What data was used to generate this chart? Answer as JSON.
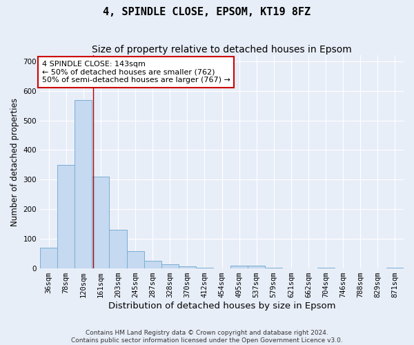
{
  "title": "4, SPINDLE CLOSE, EPSOM, KT19 8FZ",
  "subtitle": "Size of property relative to detached houses in Epsom",
  "xlabel": "Distribution of detached houses by size in Epsom",
  "ylabel": "Number of detached properties",
  "bar_color": "#c5d9f0",
  "bar_edge_color": "#7aadd4",
  "background_color": "#e8eef8",
  "plot_bg_color": "#e8eef8",
  "grid_color": "#ffffff",
  "vline_color": "#aa0000",
  "vline_x_bar_index": 2.55,
  "annotation_text": "4 SPINDLE CLOSE: 143sqm\n← 50% of detached houses are smaller (762)\n50% of semi-detached houses are larger (767) →",
  "annotation_box_color": "#ffffff",
  "annotation_box_edge_color": "#cc0000",
  "categories": [
    "36sqm",
    "78sqm",
    "120sqm",
    "161sqm",
    "203sqm",
    "245sqm",
    "287sqm",
    "328sqm",
    "370sqm",
    "412sqm",
    "454sqm",
    "495sqm",
    "537sqm",
    "579sqm",
    "621sqm",
    "662sqm",
    "704sqm",
    "746sqm",
    "788sqm",
    "829sqm",
    "871sqm"
  ],
  "values": [
    70,
    350,
    570,
    310,
    130,
    58,
    25,
    14,
    7,
    3,
    0,
    9,
    9,
    3,
    0,
    0,
    3,
    0,
    0,
    0,
    3
  ],
  "ylim": [
    0,
    720
  ],
  "yticks": [
    0,
    100,
    200,
    300,
    400,
    500,
    600,
    700
  ],
  "footnote": "Contains HM Land Registry data © Crown copyright and database right 2024.\nContains public sector information licensed under the Open Government Licence v3.0.",
  "title_fontsize": 11,
  "subtitle_fontsize": 10,
  "xlabel_fontsize": 9.5,
  "ylabel_fontsize": 8.5,
  "tick_fontsize": 7.5,
  "annotation_fontsize": 8,
  "footnote_fontsize": 6.5
}
